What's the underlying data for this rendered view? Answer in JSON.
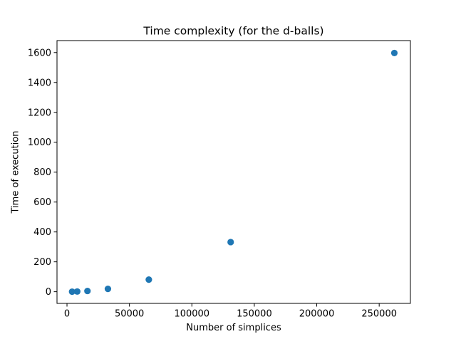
{
  "chart_data": {
    "type": "scatter",
    "title": "Time complexity (for the d-balls)",
    "xlabel": "Number of simplices",
    "ylabel": "Time of execution",
    "xlim": [
      -8000,
      275000
    ],
    "ylim": [
      -78,
      1680
    ],
    "xticks": [
      0,
      50000,
      100000,
      150000,
      200000,
      250000
    ],
    "yticks": [
      0,
      200,
      400,
      600,
      800,
      1000,
      1200,
      1400,
      1600
    ],
    "grid": false,
    "legend": "none",
    "marker_color": "#1f77b4",
    "x": [
      4096,
      8192,
      16384,
      32768,
      65536,
      131072,
      262144
    ],
    "y": [
      0.4,
      1.5,
      5,
      19,
      81,
      332,
      1597
    ]
  }
}
